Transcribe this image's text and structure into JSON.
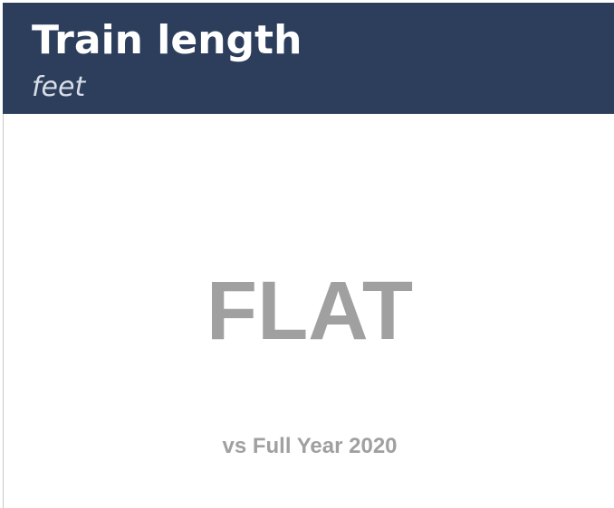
{
  "header": {
    "title": "Train length",
    "subtitle": "feet"
  },
  "status": "FLAT",
  "comparison": "vs Full Year 2020"
}
